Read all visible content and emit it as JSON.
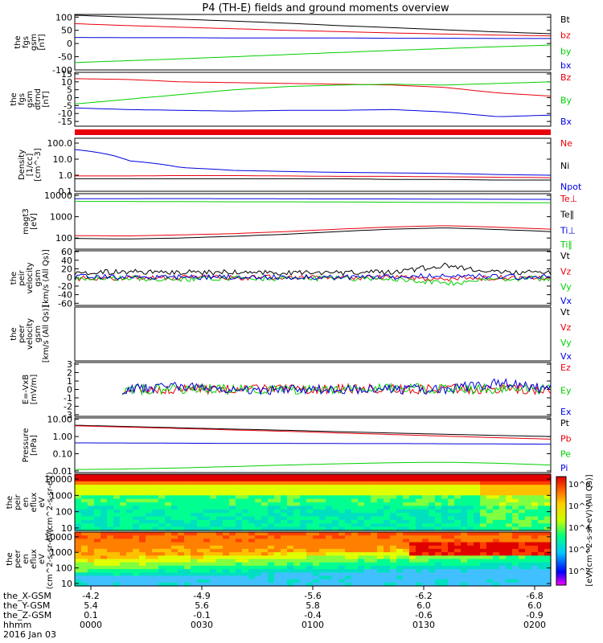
{
  "title": "P4 (TH-E) fields and ground moments overview",
  "time_axis": {
    "tick_labels": {
      "x_gsm": [
        "-4.2",
        "-4.9",
        "-5.6",
        "-6.2",
        "-6.8"
      ],
      "y_gsm": [
        "5.4",
        "5.6",
        "5.8",
        "6.0",
        "6.0"
      ],
      "z_gsm": [
        "0.1",
        "-0.1",
        "-0.4",
        "-0.6",
        "-0.9"
      ],
      "hhmm": [
        "0000",
        "0030",
        "0100",
        "0130",
        "0200"
      ]
    },
    "row_labels": [
      "the_X-GSM",
      "the_Y-GSM",
      "the_Z-GSM",
      "hhmm"
    ],
    "date": "2016 Jan 03"
  },
  "colors": {
    "black": "#000000",
    "red": "#e8000b",
    "green": "#00d000",
    "blue": "#0000e0"
  },
  "chart_data": [
    {
      "type": "line",
      "id": "fgs_gsm",
      "ylabel": [
        "the",
        "fgs",
        "gsm",
        "[nT]"
      ],
      "ylim": [
        -100,
        110
      ],
      "yticks": [
        100,
        50,
        0,
        -50,
        -100
      ],
      "series": [
        {
          "name": "Bt",
          "color": "#000000",
          "values": [
            107,
            100,
            92,
            85,
            77,
            68,
            60,
            52,
            44,
            37
          ]
        },
        {
          "name": "bz",
          "color": "#e8000b",
          "values": [
            75,
            68,
            62,
            56,
            50,
            45,
            40,
            36,
            32,
            29
          ]
        },
        {
          "name": "by",
          "color": "#00d000",
          "values": [
            -72,
            -65,
            -58,
            -50,
            -42,
            -34,
            -26,
            -19,
            -12,
            -6
          ]
        },
        {
          "name": "bx",
          "color": "#0000e0",
          "values": [
            23,
            22,
            22,
            21,
            21,
            21,
            20,
            20,
            19,
            19
          ]
        }
      ]
    },
    {
      "type": "line",
      "id": "fgs_gsm_detrend",
      "ylabel": [
        "the",
        "fgs",
        "gsm",
        "dtrnd",
        "[nT]"
      ],
      "ylim": [
        -18,
        16
      ],
      "yticks": [
        15,
        10,
        5,
        0,
        -5,
        -10,
        -15
      ],
      "series": [
        {
          "name": "Bz",
          "color": "#e8000b",
          "values": [
            12,
            11.5,
            10,
            9.5,
            9,
            8.5,
            8,
            6.5,
            3,
            1
          ]
        },
        {
          "name": "By",
          "color": "#00d000",
          "values": [
            -4,
            -1,
            2,
            5,
            7,
            8,
            8.5,
            8,
            9,
            10
          ]
        },
        {
          "name": "Bx",
          "color": "#0000e0",
          "values": [
            -6.5,
            -7.5,
            -8,
            -8.5,
            -8,
            -8,
            -7.5,
            -9,
            -12,
            -11
          ]
        }
      ]
    },
    {
      "type": "line",
      "id": "density",
      "ylabel": [
        "Density",
        "[1/cc]",
        "[cm^-3]"
      ],
      "scale": "log",
      "ylim": [
        0.1,
        200
      ],
      "yticks": [
        100.0,
        10.0,
        1.0,
        0.1
      ],
      "ytick_labels": [
        "100.0",
        "10.0",
        "1.0",
        "0.1"
      ],
      "series": [
        {
          "name": "Ne",
          "color": "#e8000b",
          "values": [
            0.9,
            0.9,
            0.95,
            0.95,
            0.9,
            0.85,
            0.85,
            0.8,
            0.75,
            0.7
          ]
        },
        {
          "name": "Ni",
          "color": "#000000",
          "values": [
            0.6,
            0.6,
            0.6,
            0.6,
            0.6,
            0.6,
            0.55,
            0.55,
            0.5,
            0.5
          ]
        },
        {
          "name": "Npot",
          "color": "#0000e0",
          "values": [
            40,
            8,
            3,
            2,
            1.7,
            1.5,
            1.4,
            1.3,
            1.1,
            1.0
          ]
        }
      ]
    },
    {
      "type": "line",
      "id": "temperature",
      "ylabel": [
        "magt3",
        "[eV]"
      ],
      "scale": "log",
      "ylim": [
        30,
        12000
      ],
      "yticks": [
        10000,
        1000,
        100
      ],
      "ytick_labels": [
        "10000",
        "1000",
        "100"
      ],
      "series": [
        {
          "name": "Te⊥",
          "color": "#e8000b",
          "values": [
            130,
            125,
            140,
            160,
            200,
            260,
            330,
            380,
            320,
            260
          ]
        },
        {
          "name": "Te∥",
          "color": "#000000",
          "values": [
            95,
            90,
            100,
            120,
            150,
            200,
            260,
            300,
            250,
            200
          ]
        },
        {
          "name": "Ti⊥",
          "color": "#0000e0",
          "values": [
            7000,
            7000,
            7100,
            7000,
            6900,
            6800,
            6800,
            6700,
            6600,
            6500
          ]
        },
        {
          "name": "Ti∥",
          "color": "#00d000",
          "values": [
            5200,
            5200,
            5100,
            5000,
            5000,
            4900,
            4800,
            4700,
            4600,
            4500
          ]
        }
      ]
    },
    {
      "type": "line",
      "id": "peir_velocity",
      "ylabel": [
        "the",
        "peir",
        "velocity",
        "gsm",
        "[km/s (All Qs)]"
      ],
      "ylim": [
        -65,
        62
      ],
      "yticks": [
        60,
        40,
        20,
        0,
        -20,
        -40,
        -60
      ],
      "series": [
        {
          "name": "Vt",
          "color": "#000000",
          "values": [
            12,
            13,
            12,
            12,
            11,
            11,
            12,
            28,
            12,
            12
          ]
        },
        {
          "name": "Vz",
          "color": "#e8000b",
          "values": [
            -2,
            0,
            -1,
            0,
            0,
            -1,
            0,
            -5,
            0,
            -1
          ]
        },
        {
          "name": "Vy",
          "color": "#00d000",
          "values": [
            -3,
            -2,
            -4,
            -2,
            -3,
            -2,
            -3,
            -15,
            -3,
            -2
          ]
        },
        {
          "name": "Vx",
          "color": "#0000e0",
          "values": [
            1,
            2,
            0,
            1,
            1,
            0,
            1,
            5,
            2,
            1
          ]
        }
      ]
    },
    {
      "type": "line",
      "id": "peer_velocity",
      "ylabel": [
        "the",
        "peer",
        "velocity",
        "gsm",
        "[km/s (All Qs)]"
      ],
      "series": [
        {
          "name": "Vt",
          "color": "#000000",
          "values": []
        },
        {
          "name": "Vz",
          "color": "#e8000b",
          "values": []
        },
        {
          "name": "Vy",
          "color": "#00d000",
          "values": []
        },
        {
          "name": "Vx",
          "color": "#0000e0",
          "values": []
        }
      ]
    },
    {
      "type": "line",
      "id": "e_field",
      "ylabel": [
        "E=-VxB",
        "[mV/m]"
      ],
      "ylim": [
        -3.2,
        3.2
      ],
      "yticks": [
        3,
        2,
        1,
        0,
        -1,
        -2,
        -3
      ],
      "series": [
        {
          "name": "Ez",
          "color": "#e8000b",
          "values": [
            0,
            0.1,
            0,
            0.1,
            0,
            0.1,
            0,
            0,
            0.1,
            0
          ]
        },
        {
          "name": "Ey",
          "color": "#00d000",
          "values": [
            0,
            0,
            0.1,
            0,
            0,
            0,
            0.1,
            0.1,
            0,
            0
          ]
        },
        {
          "name": "Ex",
          "color": "#0000e0",
          "values": [
            0,
            0,
            0.3,
            0,
            0,
            0,
            0,
            0,
            0.8,
            0
          ]
        }
      ]
    },
    {
      "type": "line",
      "id": "pressure",
      "ylabel": [
        "Pressure",
        "[nPa]"
      ],
      "scale": "log",
      "ylim": [
        0.008,
        12
      ],
      "yticks": [
        10.0,
        1.0,
        0.1,
        0.01
      ],
      "ytick_labels": [
        "10.00",
        "1.00",
        "0.10",
        "0.01"
      ],
      "series": [
        {
          "name": "Pt",
          "color": "#000000",
          "values": [
            4.5,
            3.8,
            3.2,
            2.7,
            2.3,
            1.9,
            1.6,
            1.35,
            1.15,
            1.0
          ]
        },
        {
          "name": "Pb",
          "color": "#e8000b",
          "values": [
            4.2,
            3.5,
            2.9,
            2.4,
            2.0,
            1.6,
            1.3,
            1.05,
            0.85,
            0.7
          ]
        },
        {
          "name": "Pe",
          "color": "#00d000",
          "values": [
            0.012,
            0.013,
            0.015,
            0.018,
            0.022,
            0.026,
            0.03,
            0.032,
            0.028,
            0.022
          ]
        },
        {
          "name": "Pi",
          "color": "#0000e0",
          "values": [
            0.43,
            0.42,
            0.41,
            0.4,
            0.4,
            0.39,
            0.39,
            0.38,
            0.37,
            0.36
          ]
        }
      ]
    },
    {
      "type": "heatmap",
      "id": "peir_eflux",
      "ylabel": [
        "the",
        "peir",
        "en",
        "eflux",
        "eV",
        "(cm^2-s-sr-eV)"
      ],
      "scale": "log",
      "ylim": [
        7,
        20000
      ],
      "yticks": [
        10000,
        1000,
        100,
        10
      ],
      "ytick_labels": [
        "10000",
        "1000",
        "100",
        "10"
      ]
    },
    {
      "type": "heatmap",
      "id": "peer_eflux",
      "ylabel": [
        "the",
        "peer",
        "en",
        "eflux",
        "eV",
        "(cm^2-s-sr-eV)"
      ],
      "scale": "log",
      "ylim": [
        7,
        20000
      ],
      "yticks": [
        10000,
        1000,
        100,
        10
      ],
      "ytick_labels": [
        "10000",
        "1000",
        "100",
        "10"
      ]
    }
  ],
  "colorbar": {
    "label": "[eV/(cm^2-s-sr-eV) (All Qs)]",
    "tick_labels": [
      "10^6",
      "10^5",
      "10^4",
      "10^3",
      "10^2"
    ]
  }
}
